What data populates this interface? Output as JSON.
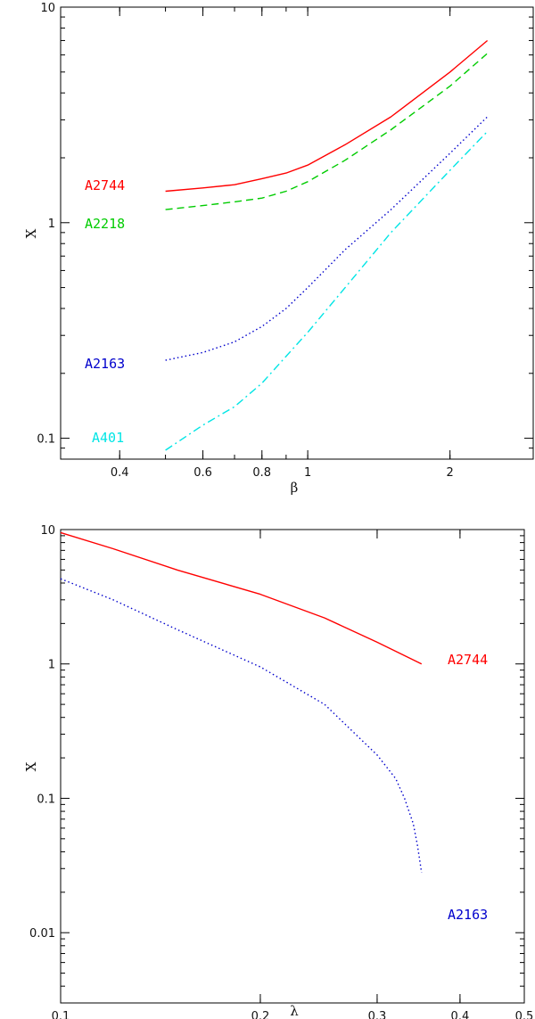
{
  "chart_data": [
    {
      "type": "line",
      "title": "",
      "xlabel": "β",
      "ylabel": "X",
      "xscale": "log",
      "yscale": "log",
      "xlim": [
        0.3,
        3.0
      ],
      "ylim": [
        0.08,
        10
      ],
      "xticks": [
        0.4,
        0.6,
        0.8,
        1,
        2
      ],
      "xtick_labels": [
        "0.4",
        "0.6",
        "0.8",
        "1",
        "2"
      ],
      "yticks": [
        0.1,
        1,
        10
      ],
      "ytick_labels": [
        "0.1",
        "1",
        "10"
      ],
      "grid": false,
      "legend": "none",
      "series": [
        {
          "name": "A2744",
          "color": "#ff0000",
          "style": "solid",
          "x": [
            0.5,
            0.6,
            0.7,
            0.8,
            0.9,
            1.0,
            1.2,
            1.5,
            2.0,
            2.4
          ],
          "y": [
            1.4,
            1.45,
            1.5,
            1.6,
            1.7,
            1.85,
            2.3,
            3.1,
            5.0,
            7.0
          ]
        },
        {
          "name": "A2218",
          "color": "#00cc00",
          "style": "dashed",
          "x": [
            0.5,
            0.6,
            0.7,
            0.8,
            0.9,
            1.0,
            1.2,
            1.5,
            2.0,
            2.4
          ],
          "y": [
            1.15,
            1.2,
            1.25,
            1.3,
            1.4,
            1.55,
            1.95,
            2.7,
            4.3,
            6.1
          ]
        },
        {
          "name": "A2163",
          "color": "#0000cc",
          "style": "dotted",
          "x": [
            0.5,
            0.6,
            0.7,
            0.8,
            0.9,
            1.0,
            1.2,
            1.5,
            2.0,
            2.4
          ],
          "y": [
            0.23,
            0.25,
            0.28,
            0.33,
            0.4,
            0.5,
            0.75,
            1.15,
            2.1,
            3.1
          ]
        },
        {
          "name": "A401",
          "color": "#00e5e5",
          "style": "dashdot",
          "x": [
            0.5,
            0.6,
            0.7,
            0.8,
            0.9,
            1.0,
            1.2,
            1.5,
            2.0,
            2.4
          ],
          "y": [
            0.088,
            0.115,
            0.14,
            0.18,
            0.24,
            0.31,
            0.5,
            0.9,
            1.75,
            2.65
          ]
        }
      ]
    },
    {
      "type": "line",
      "title": "",
      "xlabel": "λ",
      "ylabel": "X",
      "xscale": "log",
      "yscale": "log",
      "xlim": [
        0.1,
        0.5
      ],
      "ylim": [
        0.003,
        10
      ],
      "xticks": [
        0.1,
        0.2,
        0.3,
        0.4,
        0.5
      ],
      "xtick_labels": [
        "0.1",
        "0.2",
        "0.3",
        "0.4",
        "0.5"
      ],
      "yticks": [
        0.01,
        0.1,
        1,
        10
      ],
      "ytick_labels": [
        "0.01",
        "0.1",
        "1",
        "10"
      ],
      "grid": false,
      "legend": "none",
      "series": [
        {
          "name": "A2744",
          "color": "#ff0000",
          "style": "solid",
          "x": [
            0.1,
            0.12,
            0.15,
            0.2,
            0.25,
            0.3,
            0.35
          ],
          "y": [
            9.5,
            7.2,
            5.0,
            3.3,
            2.2,
            1.45,
            1.0
          ]
        },
        {
          "name": "A2163",
          "color": "#0000cc",
          "style": "dotted",
          "x": [
            0.1,
            0.12,
            0.15,
            0.2,
            0.25,
            0.3,
            0.32,
            0.33,
            0.34,
            0.345,
            0.35
          ],
          "y": [
            4.3,
            3.0,
            1.8,
            0.95,
            0.5,
            0.21,
            0.14,
            0.1,
            0.065,
            0.045,
            0.028
          ]
        }
      ]
    }
  ]
}
